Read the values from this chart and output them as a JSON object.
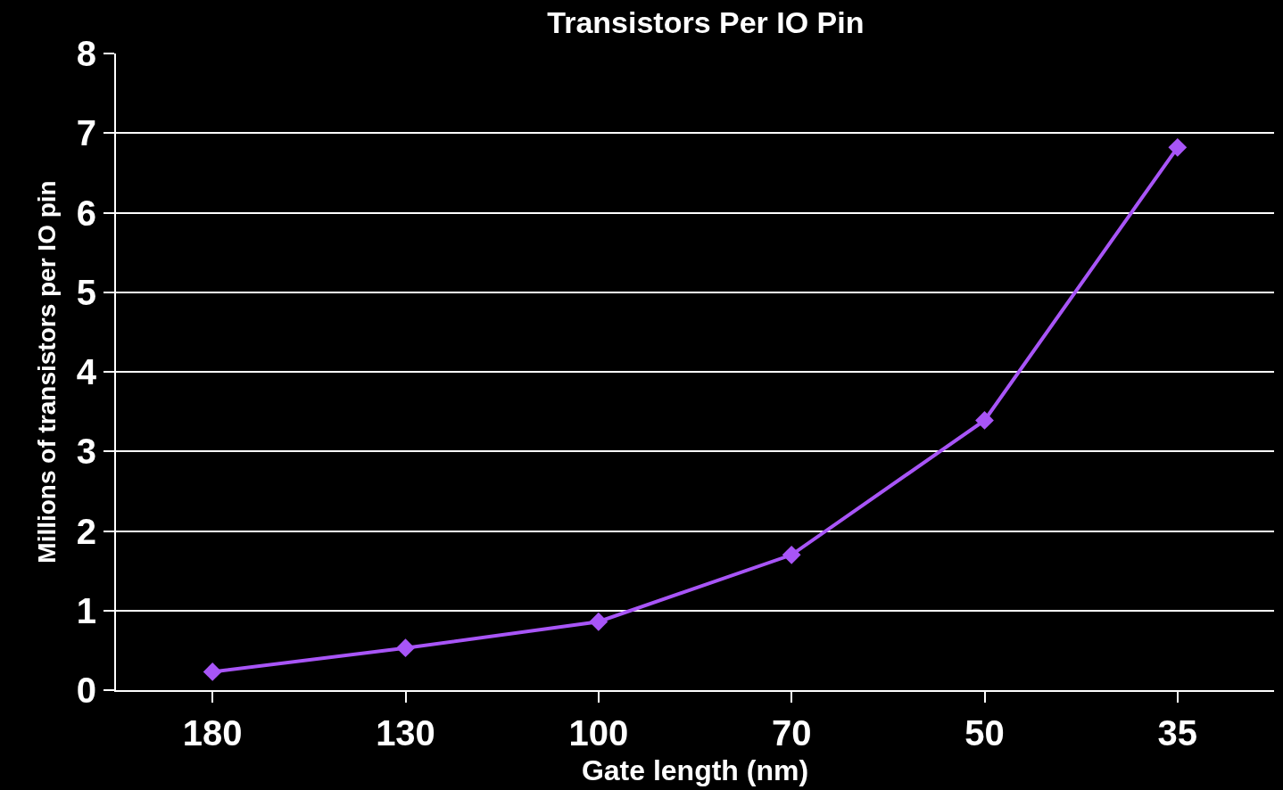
{
  "chart_data": {
    "type": "line",
    "title": "Transistors Per IO Pin",
    "xlabel": "Gate length (nm)",
    "ylabel": "Millions of transistors per IO pin",
    "categories": [
      "180",
      "130",
      "100",
      "70",
      "50",
      "35"
    ],
    "series": [
      {
        "color": "#a855f7",
        "values": [
          0.23,
          0.53,
          0.86,
          1.7,
          3.39,
          6.82
        ]
      }
    ],
    "ylim": [
      0,
      8
    ],
    "yticks": [
      0,
      1,
      2,
      3,
      4,
      5,
      6,
      7,
      8
    ],
    "grid": "y",
    "marker": "diamond",
    "line_style": "solid",
    "legend": false
  }
}
